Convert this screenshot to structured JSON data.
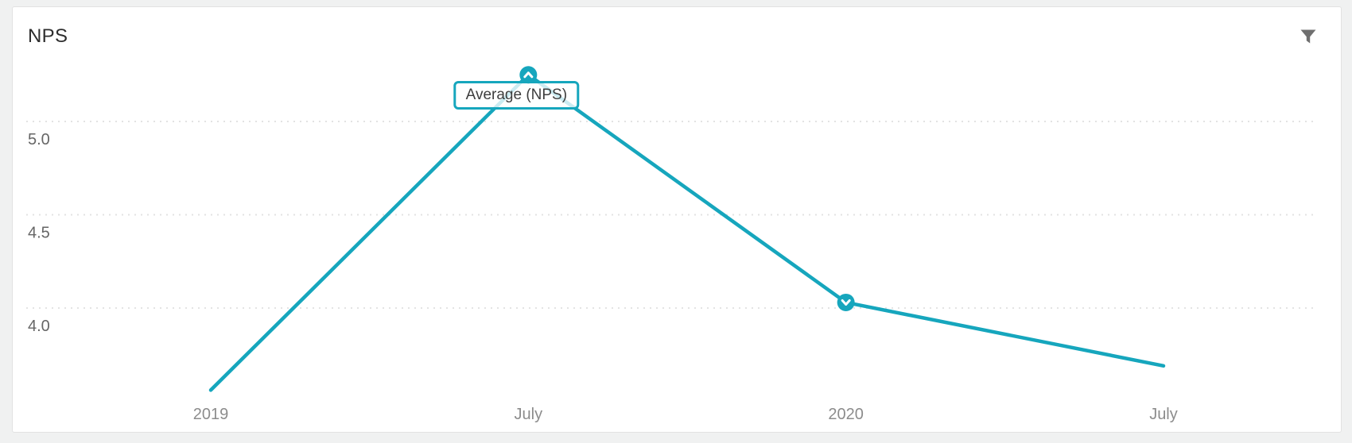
{
  "card": {
    "title": "NPS",
    "background": "#ffffff",
    "border_color": "#e2e2e2"
  },
  "header": {
    "filter_icon": "funnel-icon",
    "filter_icon_color": "#6f6f6f"
  },
  "tooltip": {
    "label": "Average (NPS)",
    "border_color": "#16a6bd"
  },
  "chart_data": {
    "type": "line",
    "title": "NPS",
    "categories": [
      "2019",
      "July",
      "2020",
      "July"
    ],
    "series": [
      {
        "name": "Average (NPS)",
        "values": [
          3.56,
          5.25,
          4.03,
          3.69
        ]
      }
    ],
    "y_ticks": [
      "5.0",
      "4.5",
      "4.0"
    ],
    "ylim": [
      3.3,
      5.5
    ],
    "xlabel": "",
    "ylabel": "",
    "grid": "horizontal-dotted",
    "legend_position": "none",
    "colors": {
      "line": "#16a6bd",
      "grid": "#e3e3e3",
      "y_tick_label": "#666666",
      "x_tick_label": "#8c8c8c",
      "marker_glyph": "#ffffff"
    },
    "point_markers": [
      {
        "point_index": 1,
        "glyph": "chevron-up",
        "has_tooltip": true
      },
      {
        "point_index": 2,
        "glyph": "chevron-down",
        "has_tooltip": false
      }
    ]
  }
}
